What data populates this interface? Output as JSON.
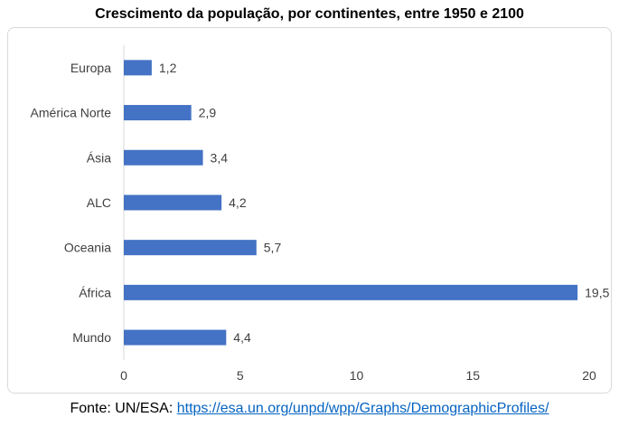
{
  "chart_data": {
    "type": "bar",
    "orientation": "horizontal",
    "title": "Crescimento da população, por continentes, entre 1950 e 2100",
    "categories": [
      "Europa",
      "América Norte",
      "Ásia",
      "ALC",
      "Oceania",
      "África",
      "Mundo"
    ],
    "values": [
      1.2,
      2.9,
      3.4,
      4.2,
      5.7,
      19.5,
      4.4
    ],
    "value_labels": [
      "1,2",
      "2,9",
      "3,4",
      "4,2",
      "5,7",
      "19,5",
      "4,4"
    ],
    "xlim": [
      0,
      20
    ],
    "xticks": [
      0,
      5,
      10,
      15,
      20
    ],
    "xlabel": "",
    "ylabel": "",
    "grid": false,
    "legend": "none",
    "bar_color": "#4472c4"
  },
  "source": {
    "prefix": "Fonte: UN/ESA: ",
    "link_text": "https://esa.un.org/unpd/wpp/Graphs/DemographicProfiles/",
    "link_color": "#0563c1"
  }
}
